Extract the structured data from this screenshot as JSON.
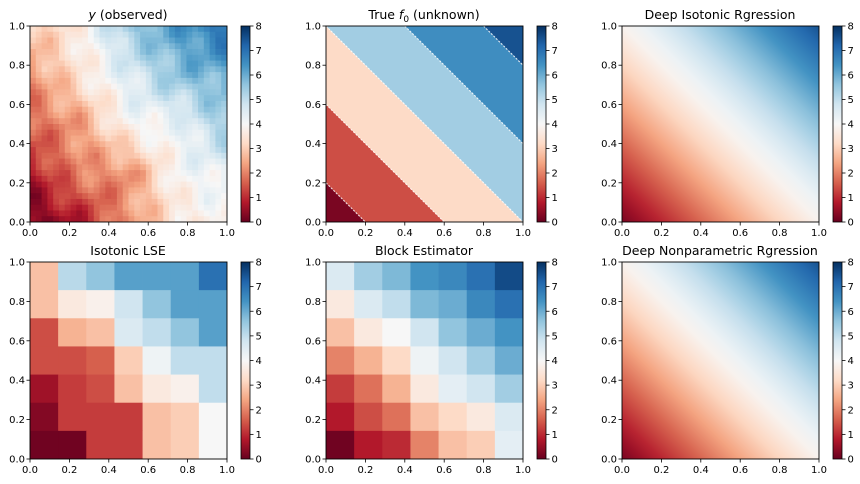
{
  "figure": {
    "colormap": "RdBu",
    "colorbar_ticks": [
      "0",
      "1",
      "2",
      "3",
      "4",
      "5",
      "6",
      "7",
      "8"
    ],
    "axis_ticks": [
      "0.0",
      "0.2",
      "0.4",
      "0.6",
      "0.8",
      "1.0"
    ],
    "colormap_stops": [
      "#67001f",
      "#b2182b",
      "#d6604d",
      "#f4a582",
      "#fddbc7",
      "#f7f7f7",
      "#d1e5f0",
      "#92c5de",
      "#4393c3",
      "#2166ac",
      "#053061"
    ]
  },
  "chart_data": [
    {
      "type": "heatmap",
      "panel": "observed",
      "title_italic": "y",
      "title": " (observed)",
      "xlim": [
        0,
        1
      ],
      "ylim": [
        0,
        1
      ],
      "vmin": 0,
      "vmax": 8,
      "model": "noisy",
      "values": [
        [
          2.2,
          2.6,
          5.7,
          6.2,
          7.0
        ],
        [
          1.4,
          3.2,
          4.6,
          6.0,
          5.6
        ],
        [
          1.6,
          1.8,
          4.4,
          3.9,
          5.6
        ],
        [
          0.6,
          2.4,
          1.4,
          4.5,
          4.2
        ],
        [
          0.2,
          0.6,
          2.8,
          4.4,
          4.4
        ]
      ]
    },
    {
      "type": "heatmap",
      "panel": "true",
      "title": "True ",
      "title_italic": "f",
      "title_sub": "0",
      "title_suffix": " (unknown)",
      "xlim": [
        0,
        1
      ],
      "ylim": [
        0,
        1
      ],
      "vmin": 0,
      "vmax": 8,
      "model": "bands",
      "band_edges": [
        0.2,
        0.6,
        1.0,
        1.4,
        1.8
      ],
      "band_values": [
        0.2,
        1.4,
        3.2,
        5.4,
        6.5,
        7.5
      ]
    },
    {
      "type": "heatmap",
      "panel": "dir",
      "title": "Deep Isotonic Rgression",
      "xlim": [
        0,
        1
      ],
      "ylim": [
        0,
        1
      ],
      "vmin": 0,
      "vmax": 8,
      "model": "smooth",
      "value_at_origin": 0.2,
      "value_at_top_right": 7.5
    },
    {
      "type": "heatmap",
      "panel": "lse",
      "title": "Isotonic LSE",
      "xlim": [
        0,
        1
      ],
      "ylim": [
        0,
        1
      ],
      "vmin": 0,
      "vmax": 8,
      "model": "grid",
      "values": [
        [
          2.8,
          5.1,
          5.6,
          6.2,
          6.2,
          6.2,
          7.0
        ],
        [
          2.8,
          3.6,
          3.8,
          4.8,
          5.6,
          6.2,
          6.2
        ],
        [
          1.4,
          2.6,
          2.8,
          4.6,
          5.0,
          5.6,
          6.2
        ],
        [
          1.4,
          1.4,
          1.6,
          3.0,
          4.2,
          5.0,
          5.0
        ],
        [
          0.6,
          1.2,
          1.4,
          2.8,
          3.6,
          3.8,
          5.0
        ],
        [
          0.3,
          1.2,
          1.2,
          1.2,
          2.8,
          3.0,
          4.0
        ],
        [
          0.1,
          0.1,
          1.2,
          1.2,
          2.8,
          3.0,
          4.0
        ]
      ]
    },
    {
      "type": "heatmap",
      "panel": "block",
      "title": "Block Estimator",
      "xlim": [
        0,
        1
      ],
      "ylim": [
        0,
        1
      ],
      "vmin": 0,
      "vmax": 8,
      "model": "grid",
      "values": [
        [
          4.6,
          5.4,
          5.8,
          6.4,
          6.6,
          7.0,
          7.6
        ],
        [
          3.6,
          4.6,
          5.0,
          5.8,
          6.0,
          6.6,
          7.0
        ],
        [
          2.8,
          3.6,
          4.0,
          4.8,
          5.6,
          6.0,
          6.4
        ],
        [
          2.0,
          2.6,
          3.2,
          4.2,
          4.8,
          5.4,
          6.0
        ],
        [
          1.2,
          1.8,
          2.6,
          3.6,
          4.4,
          4.8,
          5.4
        ],
        [
          0.8,
          1.4,
          1.8,
          2.8,
          3.2,
          3.6,
          4.6
        ],
        [
          0.1,
          0.8,
          1.0,
          2.0,
          2.8,
          3.0,
          4.4
        ]
      ]
    },
    {
      "type": "heatmap",
      "panel": "dnr",
      "title": "Deep Nonparametric Rgression",
      "xlim": [
        0,
        1
      ],
      "ylim": [
        0,
        1
      ],
      "vmin": 0,
      "vmax": 8,
      "model": "smooth",
      "value_at_origin": 0.2,
      "value_at_top_right": 7.5
    }
  ]
}
